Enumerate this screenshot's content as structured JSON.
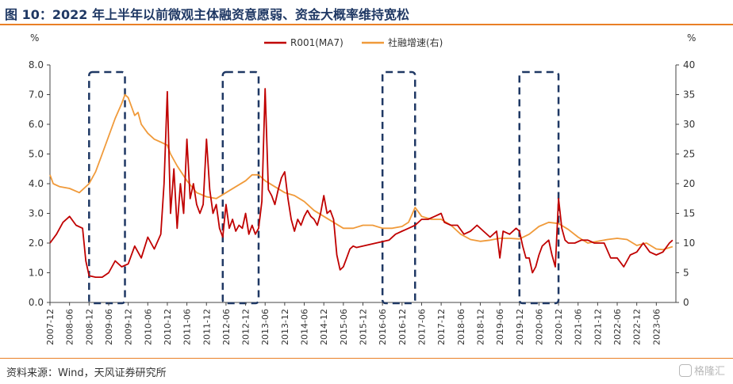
{
  "header": {
    "title": "图 10：2022 年上半年以前微观主体融资意愿弱、资金大概率维持宽松"
  },
  "footer": {
    "source": "资料来源：Wind，天风证券研究所",
    "watermark": "格隆汇"
  },
  "colors": {
    "title": "#1f3864",
    "rule": "#e97f26",
    "r001": "#c00000",
    "tsf": "#f09a3a",
    "box": "#1f3864"
  },
  "chart_data": {
    "type": "line",
    "left_unit": "%",
    "right_unit": "%",
    "y_left": {
      "min": 0,
      "max": 8,
      "ticks": [
        "0.0",
        "1.0",
        "2.0",
        "3.0",
        "4.0",
        "5.0",
        "6.0",
        "7.0",
        "8.0"
      ]
    },
    "y_right": {
      "min": 0,
      "max": 40,
      "ticks": [
        "0",
        "5",
        "10",
        "15",
        "20",
        "25",
        "30",
        "35",
        "40"
      ]
    },
    "x_ticks": [
      "2007-12",
      "2008-06",
      "2008-12",
      "2009-06",
      "2009-12",
      "2010-06",
      "2010-12",
      "2011-06",
      "2011-12",
      "2012-06",
      "2012-12",
      "2013-06",
      "2013-12",
      "2014-06",
      "2014-12",
      "2015-06",
      "2015-12",
      "2016-06",
      "2016-12",
      "2017-06",
      "2017-12",
      "2018-06",
      "2018-12",
      "2019-06",
      "2019-12",
      "2020-06",
      "2020-12",
      "2021-06",
      "2021-12",
      "2022-06",
      "2022-12",
      "2023-06"
    ],
    "highlight_windows": [
      {
        "start": "2008-12",
        "end": "2009-11"
      },
      {
        "start": "2012-05",
        "end": "2013-04"
      },
      {
        "start": "2016-06",
        "end": "2017-04"
      },
      {
        "start": "2019-12",
        "end": "2020-12"
      }
    ],
    "series": [
      {
        "name": "R001(MA7)",
        "axis": "left",
        "points": [
          [
            "2007-12",
            2.0
          ],
          [
            "2008-02",
            2.3
          ],
          [
            "2008-04",
            2.7
          ],
          [
            "2008-06",
            2.9
          ],
          [
            "2008-08",
            2.6
          ],
          [
            "2008-10",
            2.5
          ],
          [
            "2008-11",
            1.4
          ],
          [
            "2008-12",
            0.9
          ],
          [
            "2009-02",
            0.85
          ],
          [
            "2009-04",
            0.85
          ],
          [
            "2009-06",
            1.0
          ],
          [
            "2009-08",
            1.4
          ],
          [
            "2009-10",
            1.2
          ],
          [
            "2009-12",
            1.3
          ],
          [
            "2010-02",
            1.9
          ],
          [
            "2010-04",
            1.5
          ],
          [
            "2010-06",
            2.2
          ],
          [
            "2010-08",
            1.8
          ],
          [
            "2010-10",
            2.3
          ],
          [
            "2010-11",
            4.0
          ],
          [
            "2010-12",
            7.1
          ],
          [
            "2011-01",
            3.0
          ],
          [
            "2011-02",
            4.5
          ],
          [
            "2011-03",
            2.5
          ],
          [
            "2011-04",
            4.0
          ],
          [
            "2011-05",
            3.0
          ],
          [
            "2011-06",
            5.5
          ],
          [
            "2011-07",
            3.5
          ],
          [
            "2011-08",
            4.0
          ],
          [
            "2011-09",
            3.3
          ],
          [
            "2011-10",
            3.0
          ],
          [
            "2011-11",
            3.3
          ],
          [
            "2011-12",
            5.5
          ],
          [
            "2012-01",
            3.8
          ],
          [
            "2012-02",
            3.0
          ],
          [
            "2012-03",
            3.3
          ],
          [
            "2012-04",
            2.5
          ],
          [
            "2012-05",
            2.2
          ],
          [
            "2012-06",
            3.3
          ],
          [
            "2012-07",
            2.5
          ],
          [
            "2012-08",
            2.8
          ],
          [
            "2012-09",
            2.4
          ],
          [
            "2012-10",
            2.6
          ],
          [
            "2012-11",
            2.5
          ],
          [
            "2012-12",
            3.0
          ],
          [
            "2013-01",
            2.3
          ],
          [
            "2013-02",
            2.6
          ],
          [
            "2013-03",
            2.3
          ],
          [
            "2013-04",
            2.5
          ],
          [
            "2013-05",
            3.4
          ],
          [
            "2013-06",
            7.2
          ],
          [
            "2013-07",
            3.8
          ],
          [
            "2013-08",
            3.6
          ],
          [
            "2013-09",
            3.3
          ],
          [
            "2013-10",
            3.8
          ],
          [
            "2013-11",
            4.2
          ],
          [
            "2013-12",
            4.4
          ],
          [
            "2014-01",
            3.5
          ],
          [
            "2014-02",
            2.8
          ],
          [
            "2014-03",
            2.4
          ],
          [
            "2014-04",
            2.8
          ],
          [
            "2014-05",
            2.6
          ],
          [
            "2014-06",
            2.9
          ],
          [
            "2014-07",
            3.1
          ],
          [
            "2014-08",
            2.9
          ],
          [
            "2014-09",
            2.8
          ],
          [
            "2014-10",
            2.6
          ],
          [
            "2014-11",
            3.0
          ],
          [
            "2014-12",
            3.6
          ],
          [
            "2015-01",
            3.0
          ],
          [
            "2015-02",
            3.1
          ],
          [
            "2015-03",
            2.8
          ],
          [
            "2015-04",
            1.6
          ],
          [
            "2015-05",
            1.1
          ],
          [
            "2015-06",
            1.2
          ],
          [
            "2015-07",
            1.5
          ],
          [
            "2015-08",
            1.8
          ],
          [
            "2015-09",
            1.9
          ],
          [
            "2015-10",
            1.85
          ],
          [
            "2015-12",
            1.9
          ],
          [
            "2016-02",
            1.95
          ],
          [
            "2016-04",
            2.0
          ],
          [
            "2016-06",
            2.05
          ],
          [
            "2016-08",
            2.1
          ],
          [
            "2016-10",
            2.3
          ],
          [
            "2016-12",
            2.4
          ],
          [
            "2017-02",
            2.5
          ],
          [
            "2017-04",
            2.6
          ],
          [
            "2017-06",
            2.8
          ],
          [
            "2017-08",
            2.8
          ],
          [
            "2017-10",
            2.9
          ],
          [
            "2017-12",
            3.0
          ],
          [
            "2018-01",
            2.7
          ],
          [
            "2018-03",
            2.6
          ],
          [
            "2018-05",
            2.6
          ],
          [
            "2018-07",
            2.3
          ],
          [
            "2018-09",
            2.4
          ],
          [
            "2018-11",
            2.6
          ],
          [
            "2019-01",
            2.4
          ],
          [
            "2019-03",
            2.2
          ],
          [
            "2019-05",
            2.4
          ],
          [
            "2019-06",
            1.5
          ],
          [
            "2019-07",
            2.4
          ],
          [
            "2019-09",
            2.3
          ],
          [
            "2019-11",
            2.5
          ],
          [
            "2019-12",
            2.4
          ],
          [
            "2020-01",
            1.9
          ],
          [
            "2020-02",
            1.5
          ],
          [
            "2020-03",
            1.5
          ],
          [
            "2020-04",
            1.0
          ],
          [
            "2020-05",
            1.2
          ],
          [
            "2020-06",
            1.6
          ],
          [
            "2020-07",
            1.9
          ],
          [
            "2020-08",
            2.0
          ],
          [
            "2020-09",
            2.1
          ],
          [
            "2020-10",
            1.6
          ],
          [
            "2020-11",
            1.2
          ],
          [
            "2020-12",
            3.5
          ],
          [
            "2021-01",
            2.5
          ],
          [
            "2021-02",
            2.1
          ],
          [
            "2021-03",
            2.0
          ],
          [
            "2021-05",
            2.0
          ],
          [
            "2021-07",
            2.1
          ],
          [
            "2021-09",
            2.1
          ],
          [
            "2021-11",
            2.0
          ],
          [
            "2021-12",
            2.0
          ],
          [
            "2022-02",
            2.0
          ],
          [
            "2022-04",
            1.5
          ],
          [
            "2022-06",
            1.5
          ],
          [
            "2022-08",
            1.2
          ],
          [
            "2022-10",
            1.6
          ],
          [
            "2022-12",
            1.7
          ],
          [
            "2023-02",
            2.0
          ],
          [
            "2023-04",
            1.7
          ],
          [
            "2023-06",
            1.6
          ],
          [
            "2023-08",
            1.7
          ],
          [
            "2023-10",
            2.0
          ],
          [
            "2023-11",
            2.1
          ]
        ]
      },
      {
        "name": "社融增速(右)",
        "axis": "right",
        "points": [
          [
            "2007-12",
            21.5
          ],
          [
            "2008-01",
            20.0
          ],
          [
            "2008-03",
            19.5
          ],
          [
            "2008-06",
            19.2
          ],
          [
            "2008-09",
            18.5
          ],
          [
            "2008-12",
            20.0
          ],
          [
            "2009-02",
            22.0
          ],
          [
            "2009-04",
            25.0
          ],
          [
            "2009-06",
            28.0
          ],
          [
            "2009-08",
            31.0
          ],
          [
            "2009-10",
            33.5
          ],
          [
            "2009-11",
            35.0
          ],
          [
            "2009-12",
            34.5
          ],
          [
            "2010-01",
            33.0
          ],
          [
            "2010-02",
            31.5
          ],
          [
            "2010-03",
            32.0
          ],
          [
            "2010-04",
            30.0
          ],
          [
            "2010-06",
            28.5
          ],
          [
            "2010-08",
            27.5
          ],
          [
            "2010-10",
            27.0
          ],
          [
            "2010-12",
            26.5
          ],
          [
            "2011-01",
            25.0
          ],
          [
            "2011-03",
            23.0
          ],
          [
            "2011-06",
            20.5
          ],
          [
            "2011-09",
            18.5
          ],
          [
            "2011-12",
            17.8
          ],
          [
            "2012-03",
            17.5
          ],
          [
            "2012-06",
            18.5
          ],
          [
            "2012-09",
            19.5
          ],
          [
            "2012-12",
            20.5
          ],
          [
            "2013-02",
            21.5
          ],
          [
            "2013-04",
            21.5
          ],
          [
            "2013-06",
            20.5
          ],
          [
            "2013-09",
            19.5
          ],
          [
            "2013-12",
            18.5
          ],
          [
            "2014-03",
            18.0
          ],
          [
            "2014-06",
            17.0
          ],
          [
            "2014-09",
            15.5
          ],
          [
            "2014-12",
            14.5
          ],
          [
            "2015-03",
            13.5
          ],
          [
            "2015-06",
            12.5
          ],
          [
            "2015-09",
            12.5
          ],
          [
            "2015-12",
            13.0
          ],
          [
            "2016-03",
            13.0
          ],
          [
            "2016-06",
            12.5
          ],
          [
            "2016-09",
            12.5
          ],
          [
            "2016-12",
            12.8
          ],
          [
            "2017-02",
            13.5
          ],
          [
            "2017-04",
            16.0
          ],
          [
            "2017-06",
            14.5
          ],
          [
            "2017-09",
            14.0
          ],
          [
            "2017-12",
            14.0
          ],
          [
            "2018-03",
            13.0
          ],
          [
            "2018-06",
            11.5
          ],
          [
            "2018-09",
            10.6
          ],
          [
            "2018-12",
            10.3
          ],
          [
            "2019-03",
            10.5
          ],
          [
            "2019-06",
            10.8
          ],
          [
            "2019-09",
            10.8
          ],
          [
            "2019-12",
            10.7
          ],
          [
            "2020-03",
            11.5
          ],
          [
            "2020-06",
            12.8
          ],
          [
            "2020-09",
            13.5
          ],
          [
            "2020-12",
            13.3
          ],
          [
            "2021-03",
            12.3
          ],
          [
            "2021-06",
            11.0
          ],
          [
            "2021-09",
            10.0
          ],
          [
            "2021-12",
            10.3
          ],
          [
            "2022-03",
            10.6
          ],
          [
            "2022-06",
            10.8
          ],
          [
            "2022-09",
            10.6
          ],
          [
            "2022-12",
            9.6
          ],
          [
            "2023-03",
            10.0
          ],
          [
            "2023-06",
            9.0
          ],
          [
            "2023-08",
            8.9
          ],
          [
            "2023-11",
            9.4
          ]
        ]
      }
    ]
  }
}
